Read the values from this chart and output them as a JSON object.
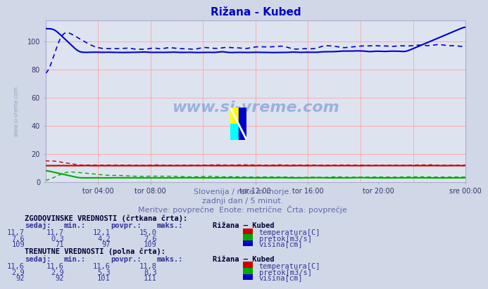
{
  "title": "Rižana - Kubed",
  "title_color": "#0000cc",
  "bg_color": "#d0d8e8",
  "plot_bg_color": "#dde4f0",
  "grid_color_v": "#ffaaaa",
  "grid_color_h": "#ffcccc",
  "ylim": [
    0,
    115
  ],
  "yticks": [
    0,
    20,
    40,
    60,
    80,
    100
  ],
  "xtick_labels": [
    "tor 04:00",
    "tor 08:00",
    "tor 12:00",
    "tor 16:00",
    "tor 20:00",
    "sre 00:00"
  ],
  "xtick_positions": [
    0.125,
    0.25,
    0.5,
    0.625,
    0.792,
    1.0
  ],
  "subtitle1": "Slovenija / reke in morje.",
  "subtitle2": "zadnji dan / 5 minut.",
  "subtitle3": "Meritve: povprečne  Enote: metrične  Črta: povprečje",
  "subtitle_color": "#6666aa",
  "watermark_text": "www.si-vreme.com",
  "watermark_color": "#6688cc",
  "side_watermark": "www.si-vreme.com",
  "section1_title": "ZGODOVINSKE VREDNOSTI (črtkana črta):",
  "section2_title": "TRENUTNE VREDNOSTI (polna črta):",
  "col_headers": [
    "sedaj:",
    "min.:",
    "povpr.:",
    "maks.:"
  ],
  "station_label": "Rižana – Kubed",
  "section1_rows": [
    [
      "11,7",
      "11,7",
      "12,1",
      "15,0",
      "#cc0000",
      "temperatura[C]"
    ],
    [
      "7,6",
      "0,3",
      "4,2",
      "7,6",
      "#00aa00",
      "pretok[m3/s]"
    ],
    [
      "109",
      "71",
      "97",
      "109",
      "#0000cc",
      "višina[cm]"
    ]
  ],
  "section2_rows": [
    [
      "11,6",
      "11,6",
      "11,6",
      "11,8",
      "#cc0000",
      "temperatura[C]"
    ],
    [
      "2,9",
      "2,9",
      "5,3",
      "8,3",
      "#00aa00",
      "pretok[m3/s]"
    ],
    [
      "92",
      "92",
      "101",
      "111",
      "#0000cc",
      "višina[cm]"
    ]
  ],
  "n_points": 288
}
